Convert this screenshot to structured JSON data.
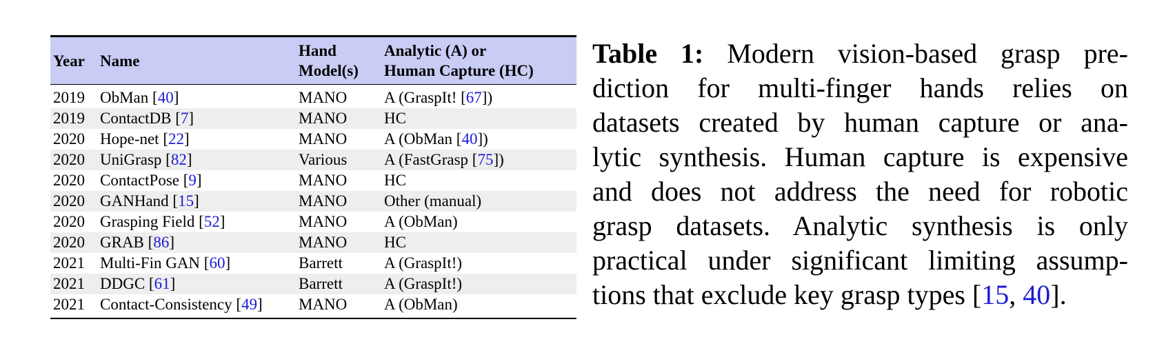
{
  "table": {
    "headers": {
      "year": "Year",
      "name": "Name",
      "hand_line1": "Hand",
      "hand_line2": "Model(s)",
      "method_line1": "Analytic (A) or",
      "method_line2": "Human Capture (HC)"
    },
    "rows": [
      {
        "year": "2019",
        "name": "ObMan [",
        "name_ref": "40",
        "name_end": "]",
        "hand": "MANO",
        "method_pre": "A (GraspIt! [",
        "method_ref": "67",
        "method_post": "])"
      },
      {
        "year": "2019",
        "name": "ContactDB [",
        "name_ref": "7",
        "name_end": "]",
        "hand": "MANO",
        "method_pre": "HC",
        "method_ref": "",
        "method_post": ""
      },
      {
        "year": "2020",
        "name": "Hope-net [",
        "name_ref": "22",
        "name_end": "]",
        "hand": "MANO",
        "method_pre": "A (ObMan [",
        "method_ref": "40",
        "method_post": "])"
      },
      {
        "year": "2020",
        "name": "UniGrasp [",
        "name_ref": "82",
        "name_end": "]",
        "hand": "Various",
        "method_pre": "A (FastGrasp [",
        "method_ref": "75",
        "method_post": "])"
      },
      {
        "year": "2020",
        "name": "ContactPose [",
        "name_ref": "9",
        "name_end": "]",
        "hand": "MANO",
        "method_pre": "HC",
        "method_ref": "",
        "method_post": ""
      },
      {
        "year": "2020",
        "name": "GANHand [",
        "name_ref": "15",
        "name_end": "]",
        "hand": "MANO",
        "method_pre": "Other (manual)",
        "method_ref": "",
        "method_post": ""
      },
      {
        "year": "2020",
        "name": "Grasping Field [",
        "name_ref": "52",
        "name_end": "]",
        "hand": "MANO",
        "method_pre": "A (ObMan)",
        "method_ref": "",
        "method_post": ""
      },
      {
        "year": "2020",
        "name": "GRAB [",
        "name_ref": "86",
        "name_end": "]",
        "hand": "MANO",
        "method_pre": "HC",
        "method_ref": "",
        "method_post": ""
      },
      {
        "year": "2021",
        "name": "Multi-Fin GAN [",
        "name_ref": "60",
        "name_end": "]",
        "hand": "Barrett",
        "method_pre": "A (GraspIt!)",
        "method_ref": "",
        "method_post": ""
      },
      {
        "year": "2021",
        "name": "DDGC [",
        "name_ref": "61",
        "name_end": "]",
        "hand": "Barrett",
        "method_pre": "A (GraspIt!)",
        "method_ref": "",
        "method_post": ""
      },
      {
        "year": "2021",
        "name": "Contact-Consistency [",
        "name_ref": "49",
        "name_end": "]",
        "hand": "MANO",
        "method_pre": "A (ObMan)",
        "method_ref": "",
        "method_post": ""
      }
    ]
  },
  "caption": {
    "label": "Table 1:",
    "lines": [
      " Modern vision-based grasp pre-",
      "diction for multi-finger hands relies on",
      "datasets created by human capture or ana-",
      "lytic synthesis. Human capture is expensive",
      "and does not address the need for robotic",
      "grasp datasets. Analytic synthesis is only",
      "practical under significant limiting assump-"
    ],
    "last_line_pre": "tions that exclude key grasp types [",
    "ref_a": "15",
    "ref_sep": ", ",
    "ref_b": "40",
    "last_line_post": "]."
  },
  "colors": {
    "header_bg": "#c9ccf4",
    "row_shade": "#eeeeee",
    "ref_link": "#1a1ad6"
  }
}
